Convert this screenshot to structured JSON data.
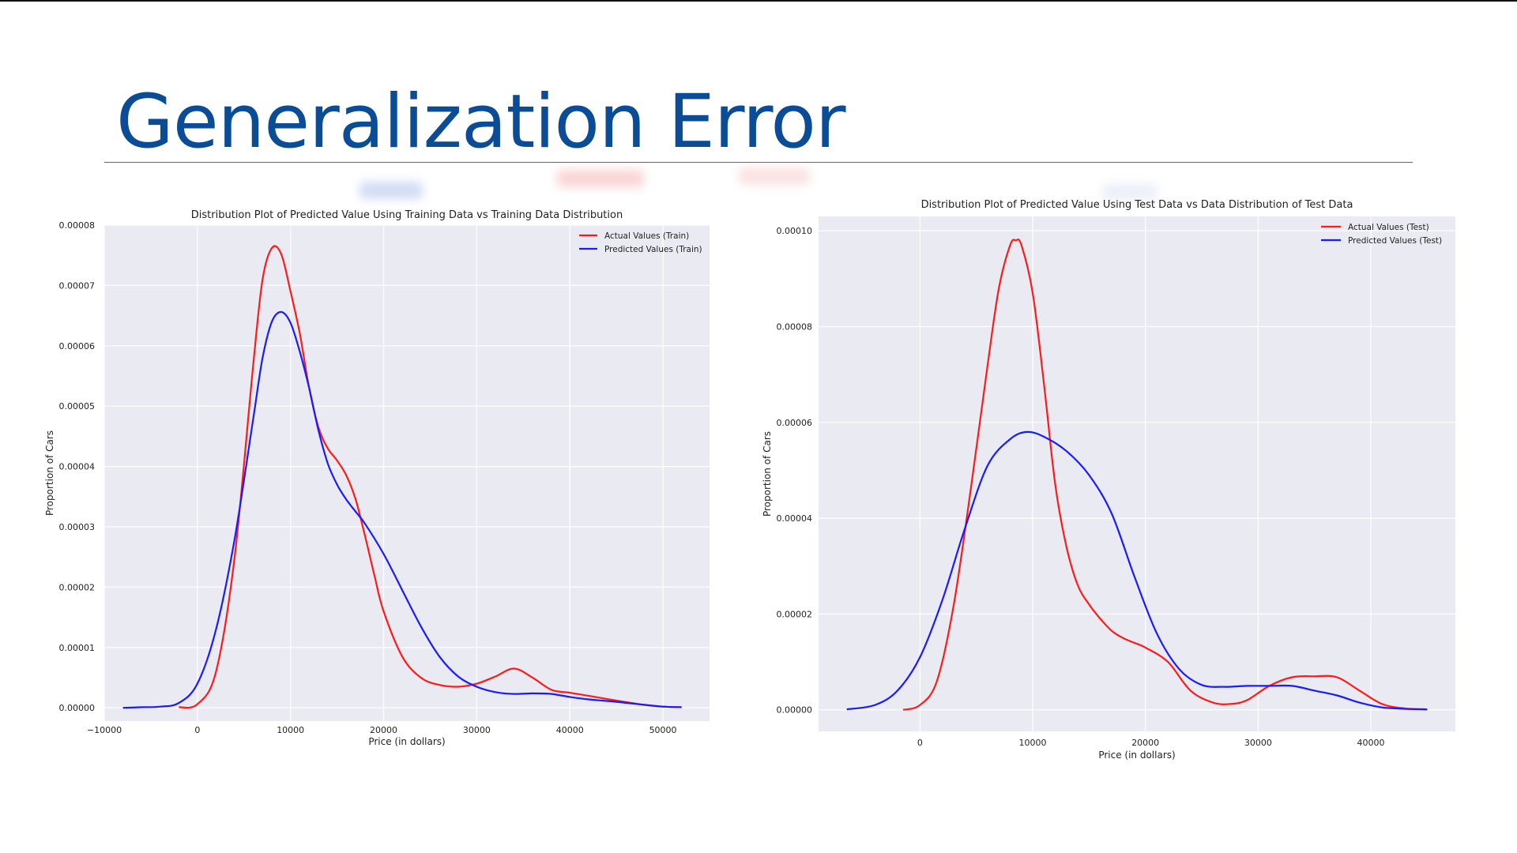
{
  "slide": {
    "title": "Generalization Error"
  },
  "chart_data": [
    {
      "type": "line",
      "title": "Distribution  Plot of  Predicted Value Using Training Data vs Training Data Distribution",
      "xlabel": "Price (in dollars)",
      "ylabel": "Proportion of Cars",
      "xlim": [
        -10000,
        55000
      ],
      "ylim": [
        -2.2e-06,
        8e-05
      ],
      "xticks": [
        -10000,
        0,
        10000,
        20000,
        30000,
        40000,
        50000
      ],
      "xtick_labels": [
        "−10000",
        "0",
        "10000",
        "20000",
        "30000",
        "40000",
        "50000"
      ],
      "yticks": [
        0,
        1e-05,
        2e-05,
        3e-05,
        4e-05,
        5e-05,
        6e-05,
        7e-05,
        8e-05
      ],
      "ytick_labels": [
        "0.00000",
        "0.00001",
        "0.00002",
        "0.00003",
        "0.00004",
        "0.00005",
        "0.00006",
        "0.00007",
        "0.00008"
      ],
      "grid": true,
      "legend_position": "top-right",
      "series": [
        {
          "name": "Actual Values (Train)",
          "color": "#ff1a1a",
          "x": [
            -2000,
            0,
            2000,
            4000,
            6000,
            7000,
            8000,
            9000,
            10000,
            11000,
            12000,
            13000,
            14000,
            15000,
            16000,
            17000,
            18000,
            19000,
            20000,
            22000,
            24000,
            26000,
            28000,
            30000,
            32000,
            34000,
            36000,
            38000,
            40000,
            42000,
            45000,
            48000,
            50000,
            52000
          ],
          "y": [
            1e-07,
            6e-07,
            6e-06,
            2.5e-05,
            5.7e-05,
            7.1e-05,
            7.62e-05,
            7.52e-05,
            6.9e-05,
            6.2e-05,
            5.3e-05,
            4.65e-05,
            4.3e-05,
            4.1e-05,
            3.85e-05,
            3.45e-05,
            2.85e-05,
            2.2e-05,
            1.6e-05,
            8.5e-06,
            5e-06,
            3.8e-06,
            3.5e-06,
            4e-06,
            5.2e-06,
            6.5e-06,
            5e-06,
            3e-06,
            2.5e-06,
            2e-06,
            1.2e-06,
            5e-07,
            2e-07,
            1e-07
          ]
        },
        {
          "name": "Predicted Values (Train)",
          "color": "#1a1aff",
          "x": [
            -8000,
            -6000,
            -4000,
            -2000,
            0,
            2000,
            4000,
            6000,
            7000,
            8000,
            9000,
            10000,
            11000,
            12000,
            13000,
            14000,
            15000,
            16000,
            17000,
            18000,
            20000,
            22000,
            24000,
            26000,
            28000,
            30000,
            32000,
            34000,
            36000,
            38000,
            40000,
            42000,
            45000,
            48000,
            50000,
            52000
          ],
          "y": [
            0.0,
            1e-07,
            2e-07,
            8e-07,
            4e-06,
            1.3e-05,
            2.8e-05,
            4.8e-05,
            5.8e-05,
            6.4e-05,
            6.56e-05,
            6.38e-05,
            5.9e-05,
            5.3e-05,
            4.6e-05,
            4.05e-05,
            3.7e-05,
            3.45e-05,
            3.25e-05,
            3.05e-05,
            2.55e-05,
            1.95e-05,
            1.35e-05,
            8.5e-06,
            5.2e-06,
            3.5e-06,
            2.6e-06,
            2.3e-06,
            2.4e-06,
            2.3e-06,
            1.8e-06,
            1.4e-06,
            1e-06,
            5e-07,
            2e-07,
            1e-07
          ]
        }
      ]
    },
    {
      "type": "line",
      "title": "Distribution  Plot of  Predicted Value Using Test Data vs Data Distribution of Test Data",
      "xlabel": "Price (in dollars)",
      "ylabel": "Proportion of Cars",
      "xlim": [
        -9000,
        47500
      ],
      "ylim": [
        -4.5e-06,
        0.000103
      ],
      "xticks": [
        0,
        10000,
        20000,
        30000,
        40000
      ],
      "xtick_labels": [
        "0",
        "10000",
        "20000",
        "30000",
        "40000"
      ],
      "yticks": [
        0,
        2e-05,
        4e-05,
        6e-05,
        8e-05,
        0.0001
      ],
      "ytick_labels": [
        "0.00000",
        "0.00002",
        "0.00004",
        "0.00006",
        "0.00008",
        "0.00010"
      ],
      "grid": true,
      "legend_position": "top-right",
      "series": [
        {
          "name": "Actual Values (Test)",
          "color": "#ff1a1a",
          "x": [
            -1500,
            0,
            1500,
            3000,
            4500,
            6000,
            7000,
            8000,
            8500,
            9000,
            10000,
            11000,
            12000,
            13000,
            14000,
            15000,
            16000,
            17000,
            18000,
            19000,
            20000,
            22000,
            24000,
            26000,
            27500,
            29000,
            31000,
            33000,
            35000,
            37000,
            39000,
            41000,
            43000,
            45000
          ],
          "y": [
            0.0,
            1e-06,
            6e-06,
            2.2e-05,
            4.6e-05,
            7.2e-05,
            8.8e-05,
            9.7e-05,
            9.8e-05,
            9.7e-05,
            8.7e-05,
            6.8e-05,
            4.7e-05,
            3.4e-05,
            2.6e-05,
            2.2e-05,
            1.9e-05,
            1.65e-05,
            1.5e-05,
            1.4e-05,
            1.3e-05,
            1e-05,
            4e-06,
            1.5e-06,
            1.2e-06,
            2e-06,
            5e-06,
            6.8e-06,
            7e-06,
            6.8e-06,
            4e-06,
            1.2e-06,
            3e-07,
            1e-07
          ]
        },
        {
          "name": "Predicted Values (Test)",
          "color": "#1a1aff",
          "x": [
            -6500,
            -4000,
            -2000,
            0,
            2000,
            4000,
            6000,
            8000,
            9500,
            11000,
            13000,
            15000,
            17000,
            19000,
            21000,
            23000,
            25000,
            27000,
            29000,
            31000,
            33000,
            35000,
            37000,
            39000,
            41000,
            43000,
            45000
          ],
          "y": [
            1e-07,
            1e-06,
            4e-06,
            1.1e-05,
            2.3e-05,
            3.8e-05,
            5.1e-05,
            5.65e-05,
            5.8e-05,
            5.7e-05,
            5.4e-05,
            4.9e-05,
            4.1e-05,
            2.8e-05,
            1.6e-05,
            8.5e-06,
            5.2e-06,
            4.8e-06,
            5e-06,
            5e-06,
            5e-06,
            4e-06,
            3e-06,
            1.5e-06,
            5e-07,
            2e-07,
            1e-07
          ]
        }
      ]
    }
  ]
}
